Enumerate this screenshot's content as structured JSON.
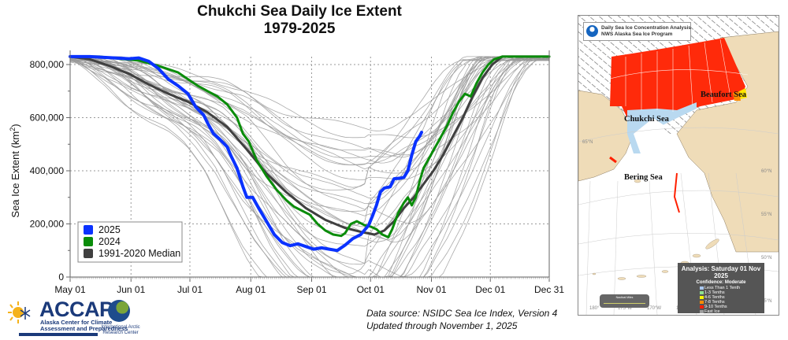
{
  "chart_data": {
    "type": "line",
    "title": "Chukchi Sea Daily Ice Extent",
    "subtitle": "1979-2025",
    "xlabel": "",
    "ylabel": "Sea Ice Extent (km²)",
    "ylabel_main": "Sea Ice Extent (km",
    "ylabel_sup": "2",
    "ylabel_end": ")",
    "ylim": [
      0,
      830000
    ],
    "yticks": [
      0,
      200000,
      400000,
      600000,
      800000
    ],
    "ytick_labels": [
      "0",
      "200,000",
      "400,000",
      "600,000",
      "800,000"
    ],
    "xlim_day": [
      0,
      244
    ],
    "xticks_day": [
      0,
      31,
      61,
      92,
      123,
      153,
      184,
      214,
      244
    ],
    "xtick_labels": [
      "May 01",
      "Jun 01",
      "Jul 01",
      "Aug 01",
      "Sep 01",
      "Oct 01",
      "Nov 01",
      "Dec 01",
      "Dec 31"
    ],
    "grid": true,
    "legend_position": "bottom-left",
    "x_unit": "days since May 01",
    "series": [
      {
        "name": "2025",
        "color": "#0a32ff",
        "points": [
          [
            0,
            830000
          ],
          [
            10,
            830000
          ],
          [
            20,
            826000
          ],
          [
            30,
            822000
          ],
          [
            35,
            825000
          ],
          [
            40,
            812000
          ],
          [
            45,
            785000
          ],
          [
            50,
            745000
          ],
          [
            55,
            720000
          ],
          [
            60,
            690000
          ],
          [
            64,
            640000
          ],
          [
            68,
            610000
          ],
          [
            70,
            580000
          ],
          [
            73,
            540000
          ],
          [
            76,
            520000
          ],
          [
            80,
            490000
          ],
          [
            82,
            455000
          ],
          [
            85,
            410000
          ],
          [
            88,
            340000
          ],
          [
            90,
            300000
          ],
          [
            93,
            300000
          ],
          [
            96,
            260000
          ],
          [
            100,
            210000
          ],
          [
            104,
            160000
          ],
          [
            108,
            130000
          ],
          [
            112,
            118000
          ],
          [
            116,
            125000
          ],
          [
            120,
            115000
          ],
          [
            124,
            105000
          ],
          [
            128,
            110000
          ],
          [
            132,
            105000
          ],
          [
            136,
            100000
          ],
          [
            140,
            120000
          ],
          [
            144,
            145000
          ],
          [
            148,
            160000
          ],
          [
            152,
            195000
          ],
          [
            154,
            230000
          ],
          [
            156,
            270000
          ],
          [
            158,
            320000
          ],
          [
            160,
            335000
          ],
          [
            163,
            340000
          ],
          [
            165,
            370000
          ],
          [
            168,
            372000
          ],
          [
            170,
            375000
          ],
          [
            172,
            400000
          ],
          [
            174,
            460000
          ],
          [
            176,
            510000
          ],
          [
            178,
            530000
          ],
          [
            179,
            545000
          ]
        ]
      },
      {
        "name": "2024",
        "color": "#0a8c0a",
        "points": [
          [
            0,
            830000
          ],
          [
            15,
            830000
          ],
          [
            25,
            822000
          ],
          [
            35,
            815000
          ],
          [
            45,
            795000
          ],
          [
            55,
            770000
          ],
          [
            60,
            745000
          ],
          [
            65,
            720000
          ],
          [
            70,
            700000
          ],
          [
            75,
            680000
          ],
          [
            80,
            650000
          ],
          [
            85,
            600000
          ],
          [
            88,
            540000
          ],
          [
            91,
            510000
          ],
          [
            95,
            440000
          ],
          [
            100,
            380000
          ],
          [
            105,
            330000
          ],
          [
            110,
            290000
          ],
          [
            114,
            265000
          ],
          [
            118,
            250000
          ],
          [
            122,
            235000
          ],
          [
            126,
            200000
          ],
          [
            130,
            175000
          ],
          [
            134,
            160000
          ],
          [
            138,
            155000
          ],
          [
            140,
            165000
          ],
          [
            143,
            200000
          ],
          [
            146,
            210000
          ],
          [
            150,
            195000
          ],
          [
            153,
            190000
          ],
          [
            156,
            180000
          ],
          [
            159,
            160000
          ],
          [
            162,
            150000
          ],
          [
            164,
            180000
          ],
          [
            167,
            240000
          ],
          [
            170,
            280000
          ],
          [
            172,
            300000
          ],
          [
            174,
            270000
          ],
          [
            176,
            300000
          ],
          [
            178,
            360000
          ],
          [
            180,
            410000
          ],
          [
            183,
            450000
          ],
          [
            186,
            490000
          ],
          [
            189,
            530000
          ],
          [
            192,
            570000
          ],
          [
            195,
            620000
          ],
          [
            198,
            660000
          ],
          [
            201,
            690000
          ],
          [
            204,
            680000
          ],
          [
            207,
            730000
          ],
          [
            210,
            770000
          ],
          [
            213,
            800000
          ],
          [
            216,
            820000
          ],
          [
            220,
            830000
          ],
          [
            244,
            830000
          ]
        ]
      },
      {
        "name": "1991-2020 Median",
        "color": "#404040",
        "points": [
          [
            0,
            830000
          ],
          [
            10,
            820000
          ],
          [
            20,
            795000
          ],
          [
            30,
            765000
          ],
          [
            40,
            725000
          ],
          [
            50,
            690000
          ],
          [
            60,
            660000
          ],
          [
            70,
            620000
          ],
          [
            80,
            565000
          ],
          [
            90,
            480000
          ],
          [
            100,
            390000
          ],
          [
            110,
            320000
          ],
          [
            120,
            260000
          ],
          [
            130,
            215000
          ],
          [
            140,
            185000
          ],
          [
            148,
            170000
          ],
          [
            155,
            160000
          ],
          [
            160,
            175000
          ],
          [
            165,
            210000
          ],
          [
            170,
            260000
          ],
          [
            175,
            300000
          ],
          [
            180,
            350000
          ],
          [
            185,
            400000
          ],
          [
            190,
            460000
          ],
          [
            195,
            530000
          ],
          [
            200,
            600000
          ],
          [
            205,
            680000
          ],
          [
            210,
            750000
          ],
          [
            215,
            800000
          ],
          [
            220,
            830000
          ],
          [
            244,
            830000
          ]
        ]
      }
    ],
    "background_years_note": "thin gray lines for individual years 1979-2023"
  },
  "legend": [
    {
      "label": "2025",
      "color": "#0a32ff"
    },
    {
      "label": "2024",
      "color": "#0a8c0a"
    },
    {
      "label": "1991-2020 Median",
      "color": "#404040"
    }
  ],
  "source": {
    "line1": "Data source: NSIDC Sea Ice Index, Version 4",
    "line2": "Updated through November 1, 2025"
  },
  "logos": {
    "accap_name": "ACCAP",
    "accap_sub1": "Alaska Center for Climate",
    "accap_sub2": "Assessment and Preparedness",
    "iarc_name": "International Arctic Research Center"
  },
  "map": {
    "header_line1": "Daily Sea Ice Concentration Analysis",
    "header_line2": "NWS Alaska Sea Ice Program",
    "labels": {
      "beaufort": "Beaufort Sea",
      "chukchi": "Chukchi Sea",
      "bering": "Bering Sea"
    },
    "analysis_title": "Analysis: Saturday 01 Nov 2025",
    "confidence": "Confidence: Moderate",
    "legend": [
      {
        "label": "Less Than 1 Tenth",
        "color": "#a9c8f0"
      },
      {
        "label": "1-3 Tenths",
        "color": "#8fe08f"
      },
      {
        "label": "4-6 Tenths",
        "color": "#f5f500"
      },
      {
        "label": "7-8 Tenths",
        "color": "#ff8c00"
      },
      {
        "label": "9-10 Tenths",
        "color": "#ff2000"
      },
      {
        "label": "Fast Ice",
        "color": "#9e9e9e"
      },
      {
        "label": "Ice Free",
        "color": "#ffffff"
      }
    ],
    "scale_title": "Nautical Miles",
    "lat_labels": [
      "65°N",
      "60°N",
      "55°N",
      "50°N",
      "45°N"
    ],
    "lon_labels": [
      "180°",
      "175°W",
      "170°W",
      "165°W",
      "160°W",
      "155°W"
    ]
  }
}
